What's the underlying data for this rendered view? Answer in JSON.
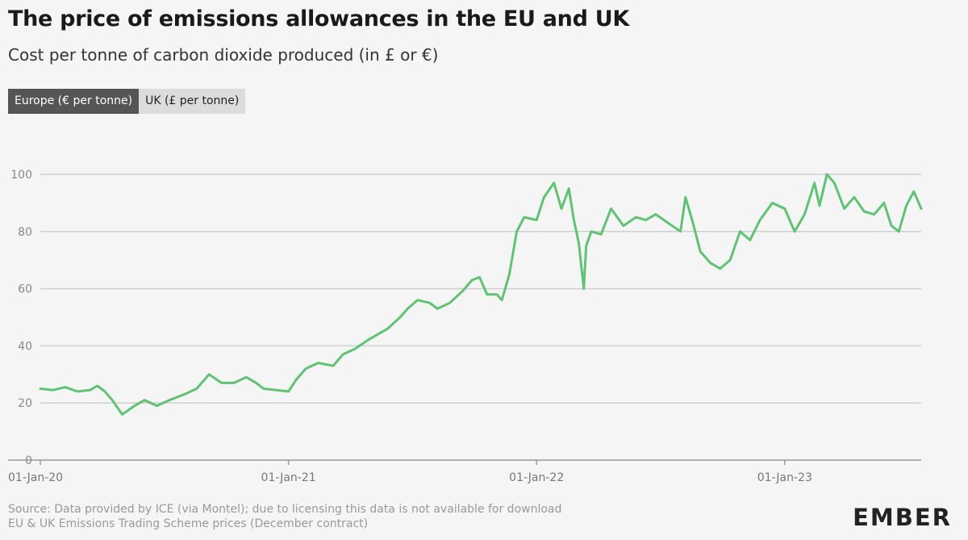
{
  "header": {
    "title": "The price of emissions allowances in the EU and UK",
    "subtitle": "Cost per tonne of carbon dioxide produced (in £ or €)"
  },
  "toggles": {
    "europe_label": "Europe (€ per tonne)",
    "uk_label": "UK (£ per tonne)"
  },
  "footer": {
    "source": "Source: Data provided by ICE (via Montel); due to licensing this data is not available for download",
    "note": "EU & UK Emissions Trading Scheme prices (December contract)"
  },
  "logo": {
    "text": "EMBER"
  },
  "colors": {
    "line": "#5dc472",
    "active_toggle": "#555555"
  },
  "chart_data": {
    "type": "line",
    "title": "The price of emissions allowances in the EU and UK",
    "ylabel": "",
    "xlabel": "",
    "ylim": [
      0,
      100
    ],
    "xlim": [
      2020.0,
      2023.55
    ],
    "yticks": [
      0,
      20,
      40,
      60,
      80,
      100
    ],
    "xticks": [
      {
        "value": 2020.0,
        "label": "01-Jan-20"
      },
      {
        "value": 2021.0,
        "label": "01-Jan-21"
      },
      {
        "value": 2022.0,
        "label": "01-Jan-22"
      },
      {
        "value": 2023.0,
        "label": "01-Jan-23"
      }
    ],
    "grid": true,
    "series": [
      {
        "name": "Europe (€ per tonne)",
        "x": [
          2020.0,
          2020.05,
          2020.1,
          2020.15,
          2020.2,
          2020.23,
          2020.26,
          2020.29,
          2020.33,
          2020.38,
          2020.42,
          2020.47,
          2020.52,
          2020.58,
          2020.63,
          2020.68,
          2020.73,
          2020.78,
          2020.83,
          2020.87,
          2020.9,
          2020.95,
          2021.0,
          2021.03,
          2021.07,
          2021.12,
          2021.18,
          2021.22,
          2021.27,
          2021.32,
          2021.36,
          2021.4,
          2021.45,
          2021.48,
          2021.52,
          2021.57,
          2021.6,
          2021.65,
          2021.7,
          2021.74,
          2021.77,
          2021.8,
          2021.84,
          2021.86,
          2021.89,
          2021.92,
          2021.95,
          2022.0,
          2022.03,
          2022.07,
          2022.1,
          2022.13,
          2022.15,
          2022.17,
          2022.19,
          2022.2,
          2022.22,
          2022.26,
          2022.3,
          2022.35,
          2022.4,
          2022.44,
          2022.48,
          2022.53,
          2022.58,
          2022.6,
          2022.63,
          2022.66,
          2022.7,
          2022.74,
          2022.78,
          2022.82,
          2022.86,
          2022.9,
          2022.95,
          2023.0,
          2023.04,
          2023.08,
          2023.12,
          2023.14,
          2023.17,
          2023.2,
          2023.24,
          2023.28,
          2023.32,
          2023.36,
          2023.4,
          2023.43,
          2023.46,
          2023.49,
          2023.52,
          2023.55
        ],
        "values": [
          25,
          24.5,
          25.5,
          24,
          24.5,
          26,
          24,
          21,
          16,
          19,
          21,
          19,
          21,
          23,
          25,
          30,
          27,
          27,
          29,
          27,
          25,
          24.5,
          24,
          28,
          32,
          34,
          33,
          37,
          39,
          42,
          44,
          46,
          50,
          53,
          56,
          55,
          53,
          55,
          59,
          63,
          64,
          58,
          58,
          56,
          65,
          80,
          85,
          84,
          92,
          97,
          88,
          95,
          84,
          76,
          60,
          75,
          80,
          79,
          88,
          82,
          85,
          84,
          86,
          83,
          80,
          92,
          83,
          73,
          69,
          67,
          70,
          80,
          77,
          84,
          90,
          88,
          80,
          86,
          97,
          89,
          100,
          97,
          88,
          92,
          87,
          86,
          90,
          82,
          80,
          89,
          94,
          88
        ]
      }
    ]
  }
}
